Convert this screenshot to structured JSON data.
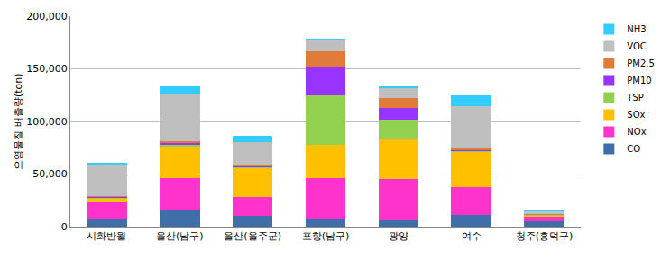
{
  "chart_data": {
    "type": "bar",
    "stacked": true,
    "y_label": "오염물질 배출량(ton)",
    "categories": [
      "시화반월",
      "울산(남구)",
      "울산(울주군)",
      "포항(남구)",
      "광양",
      "여수",
      "청주(흥덕구)"
    ],
    "series": [
      {
        "name": "CO",
        "color": "#3E6FA8",
        "values": [
          8000,
          15000,
          10000,
          7000,
          6000,
          11000,
          5000
        ]
      },
      {
        "name": "NOx",
        "color": "#FF33CC",
        "values": [
          15000,
          31000,
          18000,
          39000,
          39000,
          27000,
          5000
        ]
      },
      {
        "name": "SOx",
        "color": "#FFC000",
        "values": [
          4000,
          30000,
          28000,
          32000,
          38000,
          33000,
          1000
        ]
      },
      {
        "name": "TSP",
        "color": "#92D050",
        "values": [
          500,
          2000,
          1000,
          47000,
          19000,
          1000,
          200
        ]
      },
      {
        "name": "PM10",
        "color": "#9933FF",
        "values": [
          1000,
          2000,
          1000,
          27000,
          11000,
          1500,
          300
        ]
      },
      {
        "name": "PM2.5",
        "color": "#E07B39",
        "values": [
          500,
          1500,
          1000,
          15000,
          9000,
          1000,
          200
        ]
      },
      {
        "name": "VOC",
        "color": "#BFBFBF",
        "values": [
          30000,
          45000,
          21000,
          10000,
          10000,
          40000,
          3000
        ]
      },
      {
        "name": "NH3",
        "color": "#33CCFF",
        "values": [
          1000,
          7000,
          6000,
          1000,
          1000,
          10000,
          300
        ]
      }
    ],
    "ylim": [
      0,
      200000
    ],
    "yticks": [
      0,
      {
        "value": 50000,
        "label": "50,000"
      },
      {
        "value": 100000,
        "label": "100,000"
      },
      {
        "value": 150000,
        "label": "150,000"
      },
      {
        "value": 200000,
        "label": "200,000"
      }
    ],
    "grid": true,
    "legend": "right"
  }
}
